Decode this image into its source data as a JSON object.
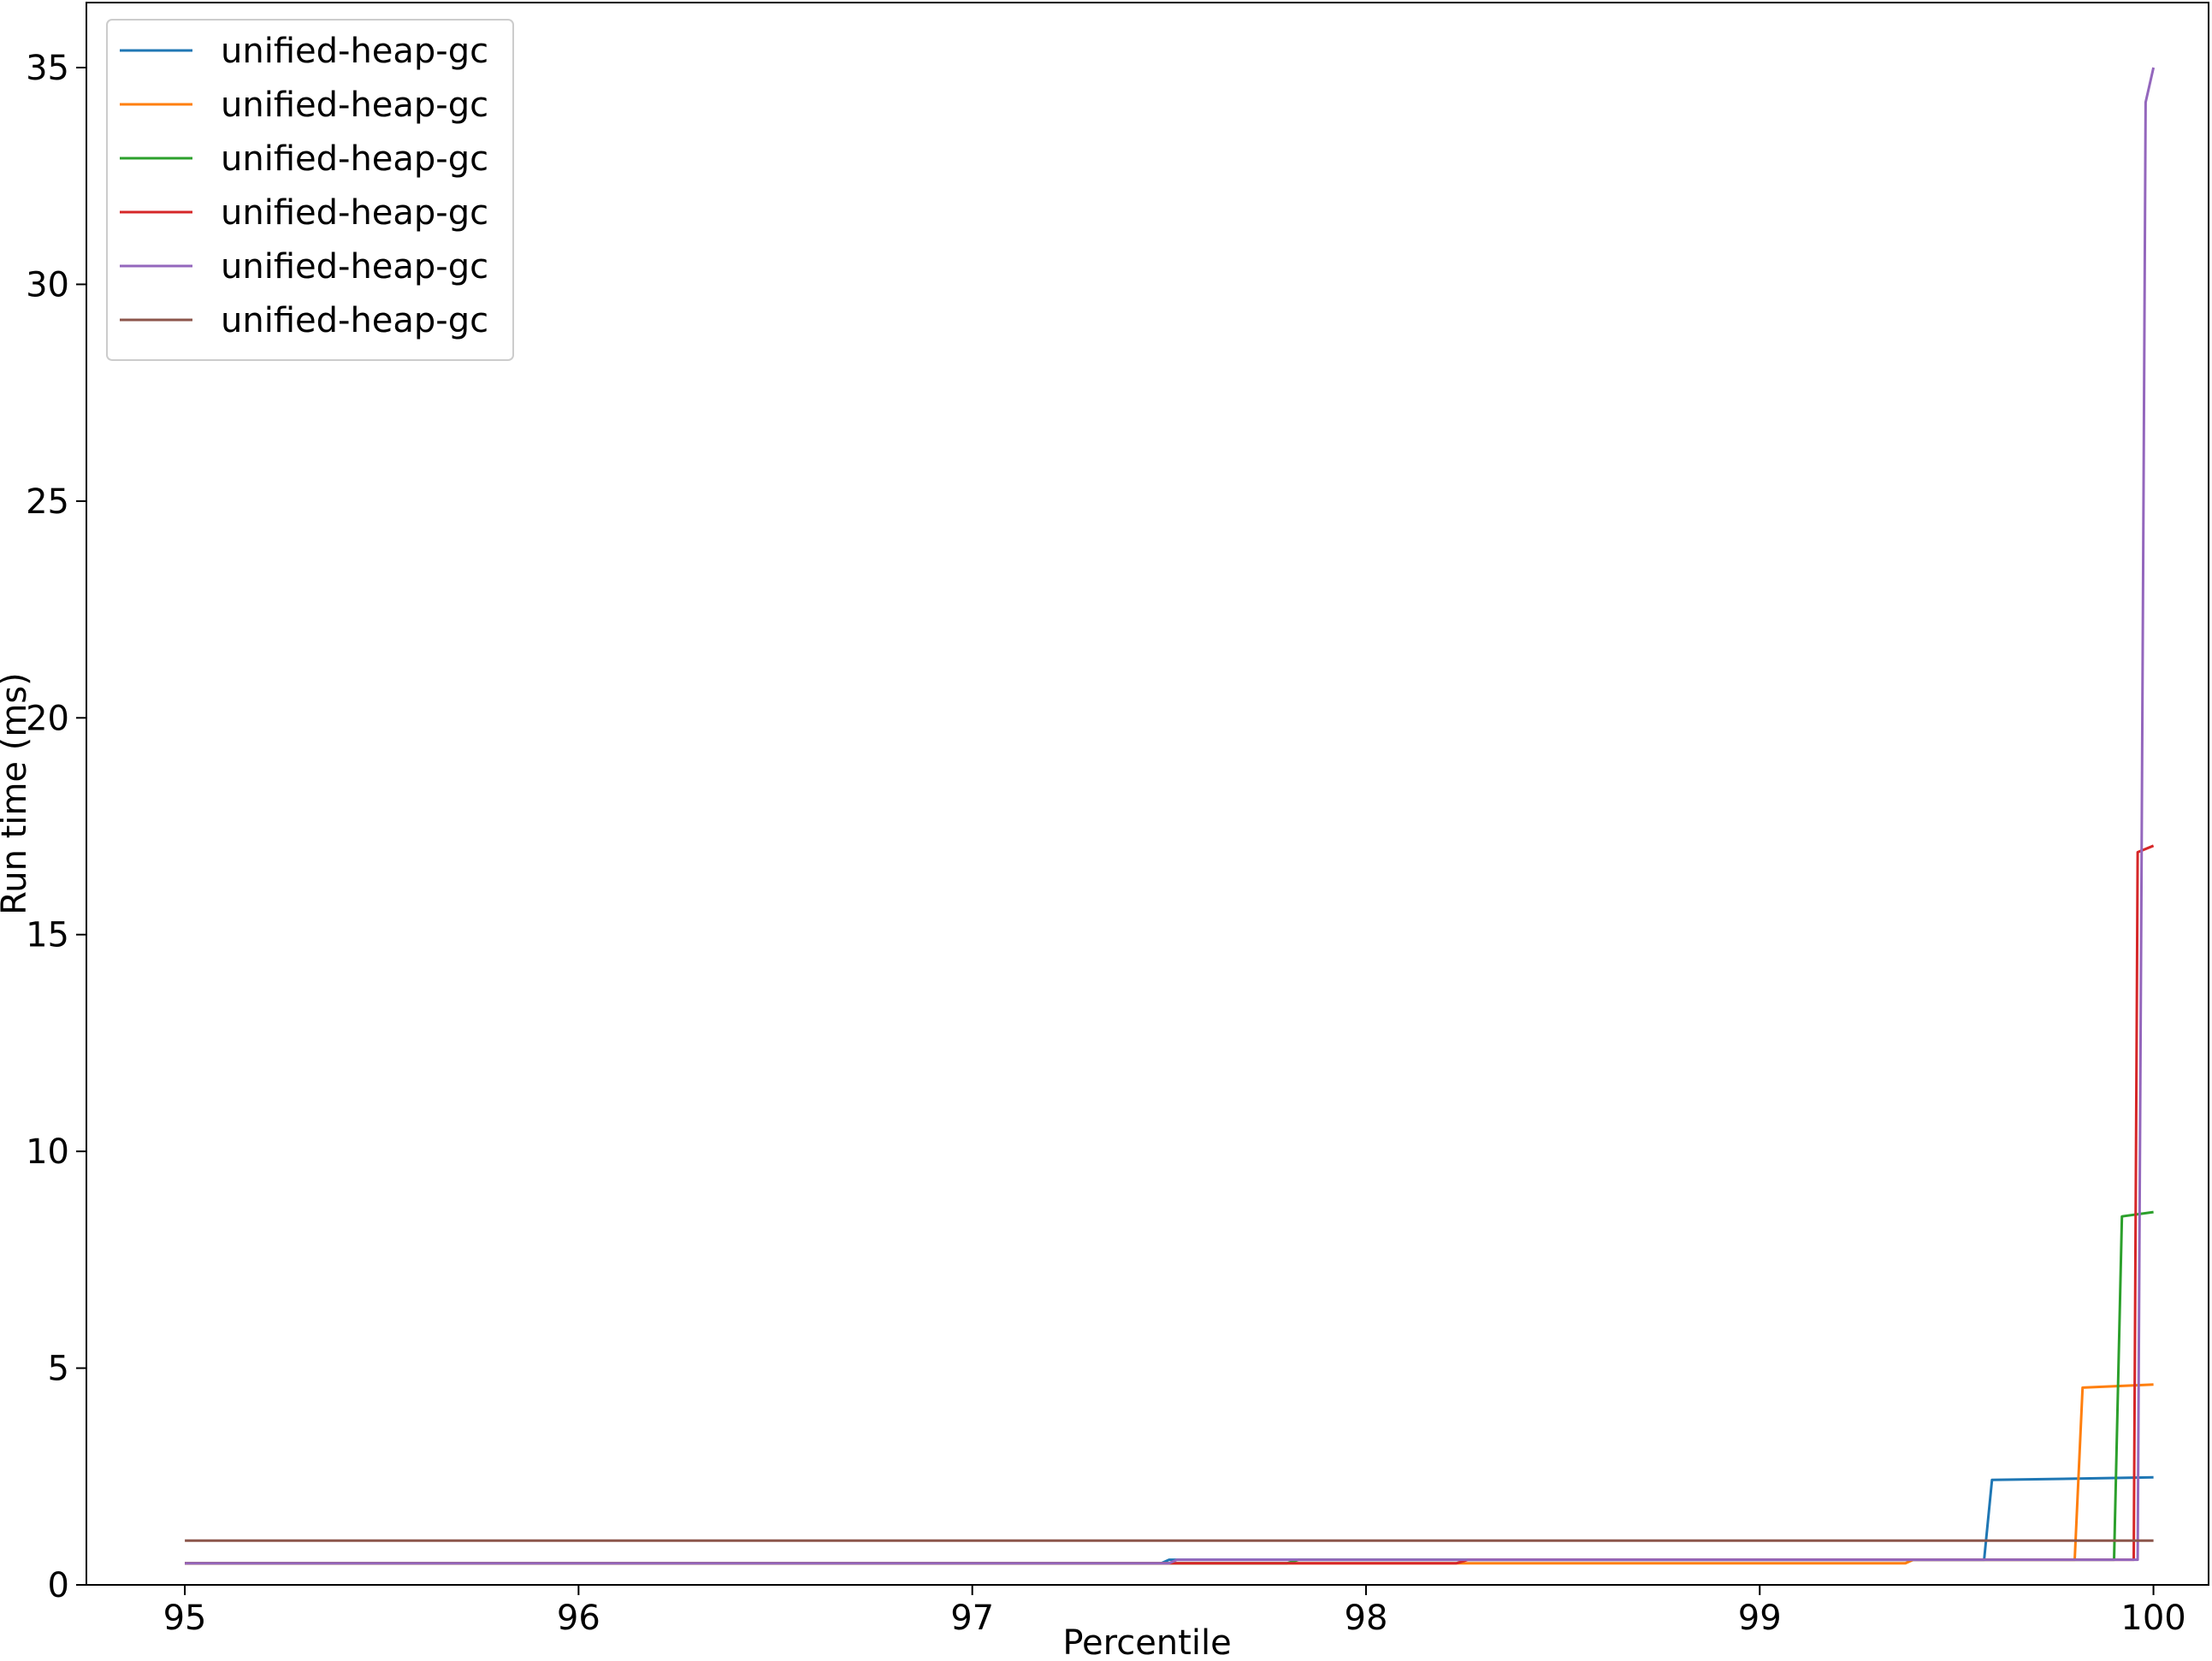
{
  "chart_data": {
    "type": "line",
    "title": "",
    "xlabel": "Percentile",
    "ylabel": "Run time (ms)",
    "xlim": [
      94.75,
      100.14
    ],
    "ylim": [
      0,
      36.5
    ],
    "xticks": [
      95,
      96,
      97,
      98,
      99,
      100
    ],
    "yticks": [
      0,
      5,
      10,
      15,
      20,
      25,
      30,
      35
    ],
    "grid": false,
    "legend": "top-left",
    "series": [
      {
        "name": "unified-heap-gc",
        "color": "#1f77b4",
        "points": [
          [
            95.0,
            0.5
          ],
          [
            97.48,
            0.5
          ],
          [
            97.5,
            0.58
          ],
          [
            99.57,
            0.58
          ],
          [
            99.59,
            2.42
          ],
          [
            100.0,
            2.48
          ]
        ]
      },
      {
        "name": "unified-heap-gc",
        "color": "#ff7f0e",
        "points": [
          [
            95.0,
            0.5
          ],
          [
            99.37,
            0.5
          ],
          [
            99.39,
            0.58
          ],
          [
            99.8,
            0.58
          ],
          [
            99.82,
            4.55
          ],
          [
            100.0,
            4.62
          ]
        ]
      },
      {
        "name": "unified-heap-gc",
        "color": "#2ca02c",
        "points": [
          [
            95.0,
            0.5
          ],
          [
            97.8,
            0.5
          ],
          [
            97.83,
            0.58
          ],
          [
            99.9,
            0.58
          ],
          [
            99.92,
            8.5
          ],
          [
            100.0,
            8.6
          ]
        ]
      },
      {
        "name": "unified-heap-gc",
        "color": "#d62728",
        "points": [
          [
            95.0,
            0.5
          ],
          [
            98.23,
            0.5
          ],
          [
            98.26,
            0.58
          ],
          [
            99.95,
            0.58
          ],
          [
            99.96,
            16.9
          ],
          [
            100.0,
            17.05
          ]
        ]
      },
      {
        "name": "unified-heap-gc",
        "color": "#9467bd",
        "points": [
          [
            95.0,
            0.5
          ],
          [
            97.5,
            0.5
          ],
          [
            97.52,
            0.58
          ],
          [
            99.96,
            0.58
          ],
          [
            99.97,
            16.8
          ],
          [
            99.98,
            34.2
          ],
          [
            100.0,
            35.0
          ]
        ]
      },
      {
        "name": "unified-heap-gc",
        "color": "#8c564b",
        "points": [
          [
            95.0,
            1.02
          ],
          [
            100.0,
            1.02
          ]
        ]
      }
    ]
  }
}
